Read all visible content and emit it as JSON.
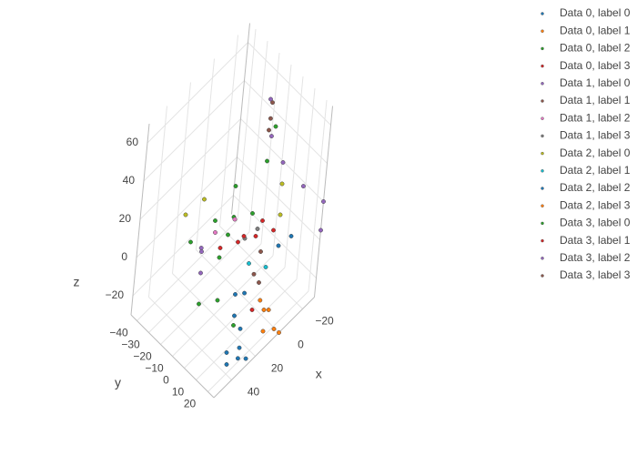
{
  "chart_data": {
    "type": "scatter3d",
    "xlabel": "x",
    "ylabel": "y",
    "zlabel": "z",
    "xlim": [
      -30,
      55
    ],
    "ylim": [
      -45,
      25
    ],
    "zlim": [
      -30,
      70
    ],
    "xticks": [
      {
        "value": -20,
        "label": "−20"
      },
      0,
      20,
      40
    ],
    "yticks": [
      {
        "value": -40,
        "label": "−40"
      },
      {
        "value": -30,
        "label": "−30"
      },
      {
        "value": -20,
        "label": "−20"
      },
      {
        "value": -10,
        "label": "−10"
      },
      0,
      10,
      20
    ],
    "zticks": [
      {
        "value": -20,
        "label": "−20"
      },
      0,
      20,
      40,
      60
    ],
    "grid": true,
    "legend": "right",
    "series": [
      {
        "name": "Data 0, label 0",
        "color": "#1f77b4",
        "x": [
          30,
          35,
          25,
          40,
          28,
          -10,
          -15,
          32,
          20
        ],
        "y": [
          20,
          15,
          22,
          20,
          18,
          10,
          15,
          22,
          12
        ],
        "z": [
          -28,
          -25,
          -30,
          -25,
          -15,
          0,
          5,
          -20,
          -5
        ]
      },
      {
        "name": "Data 0, label 1",
        "color": "#ff7f0e",
        "x": [
          15,
          5,
          0,
          8
        ],
        "y": [
          25,
          25,
          25,
          22
        ],
        "z": [
          -20,
          -25,
          -30,
          -15
        ]
      },
      {
        "name": "Data 0, label 2",
        "color": "#2ca02c",
        "x": [
          10,
          20,
          30,
          35,
          25,
          -10,
          -15,
          15,
          30,
          5
        ],
        "y": [
          -10,
          -10,
          0,
          -10,
          10,
          -5,
          -5,
          -20,
          -25,
          0
        ],
        "z": [
          15,
          0,
          -10,
          -15,
          -20,
          35,
          50,
          10,
          5,
          20
        ]
      },
      {
        "name": "Data 0, label 3",
        "color": "#d62728",
        "x": [
          0,
          -10,
          10,
          20,
          15
        ],
        "y": [
          0,
          5,
          -5,
          -10,
          15
        ],
        "z": [
          5,
          5,
          5,
          5,
          -15
        ]
      },
      {
        "name": "Data 1, label 0",
        "color": "#9467bd",
        "x": [
          25,
          30,
          -25,
          -28,
          -30,
          -30,
          -20
        ],
        "y": [
          -20,
          -15,
          -5,
          10,
          25,
          25,
          -15
        ],
        "z": [
          0,
          -5,
          25,
          20,
          20,
          5,
          55
        ]
      },
      {
        "name": "Data 1, label 1",
        "color": "#8c564b",
        "x": [
          -22,
          -15,
          5,
          0
        ],
        "y": [
          -15,
          -10,
          10,
          5
        ],
        "z": [
          52,
          45,
          -10,
          0
        ]
      },
      {
        "name": "Data 1, label 2",
        "color": "#e377c2",
        "x": [
          20,
          15
        ],
        "y": [
          -15,
          -5
        ],
        "z": [
          10,
          20
        ]
      },
      {
        "name": "Data 1, label 3",
        "color": "#7f7f7f",
        "x": [
          10,
          5
        ],
        "y": [
          0,
          5
        ],
        "z": [
          10,
          15
        ]
      },
      {
        "name": "Data 2, label 0",
        "color": "#bcbd22",
        "x": [
          25,
          15,
          -20,
          -15
        ],
        "y": [
          -35,
          -30,
          0,
          5
        ],
        "z": [
          10,
          15,
          20,
          10
        ]
      },
      {
        "name": "Data 2, label 1",
        "color": "#17becf",
        "x": [
          10,
          0
        ],
        "y": [
          5,
          10
        ],
        "z": [
          0,
          -5
        ]
      },
      {
        "name": "Data 2, label 2",
        "color": "#1f77b4",
        "x": [
          20,
          25
        ],
        "y": [
          5,
          10
        ],
        "z": [
          -10,
          -15
        ]
      },
      {
        "name": "Data 2, label 3",
        "color": "#ff7f0e",
        "x": [
          10,
          12
        ],
        "y": [
          20,
          18
        ],
        "z": [
          -15,
          -10
        ]
      },
      {
        "name": "Data 3, label 0",
        "color": "#2ca02c",
        "x": [
          20,
          5
        ],
        "y": [
          -5,
          -15
        ],
        "z": [
          15,
          25
        ]
      },
      {
        "name": "Data 3, label 1",
        "color": "#d62728",
        "x": [
          5,
          -5
        ],
        "y": [
          -5,
          0
        ],
        "z": [
          5,
          10
        ]
      },
      {
        "name": "Data 3, label 2",
        "color": "#9467bd",
        "x": [
          28,
          -18
        ],
        "y": [
          -18,
          -10
        ],
        "z": [
          5,
          40
        ]
      },
      {
        "name": "Data 3, label 3",
        "color": "#8c564b",
        "x": [
          -18,
          8
        ],
        "y": [
          -12,
          8
        ],
        "z": [
          48,
          -5
        ]
      }
    ]
  }
}
